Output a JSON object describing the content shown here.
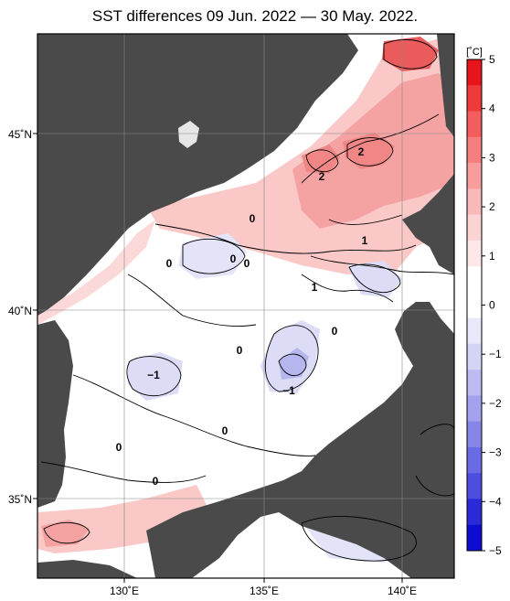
{
  "title": "SST differences 09 Jun. 2022 — 30 May. 2022.",
  "lat_labels": [
    "45˚N",
    "40˚N",
    "35˚N"
  ],
  "lon_labels": [
    "130˚E",
    "135˚E",
    "140˚E"
  ],
  "colorbar": {
    "unit": "[˚C]",
    "ticks": [
      "5",
      "4",
      "3",
      "2",
      "1",
      "0",
      "−1",
      "−2",
      "−3",
      "−4",
      "−5"
    ],
    "colors": [
      "#e8141c",
      "#ef3a3b",
      "#f35d5d",
      "#f57f7f",
      "#f79d9c",
      "#f9b9b8",
      "#fbd3d2",
      "#fde8e7",
      "#ffffff",
      "#ffffff",
      "#e9e9fb",
      "#d4d4f7",
      "#bcbcf2",
      "#a2a2ee",
      "#8686e9",
      "#6a6ae4",
      "#4d4ddf",
      "#2a2ad9",
      "#0d0dd2"
    ]
  },
  "contour_labels": [
    {
      "text": "2"
    },
    {
      "text": "2"
    },
    {
      "text": "1"
    },
    {
      "text": "1"
    },
    {
      "text": "0"
    },
    {
      "text": "0"
    },
    {
      "text": "0"
    },
    {
      "text": "0"
    },
    {
      "text": "0"
    },
    {
      "text": "0"
    },
    {
      "text": "0"
    },
    {
      "text": "0"
    },
    {
      "text": "0"
    },
    {
      "text": "−1"
    },
    {
      "text": "−1"
    }
  ],
  "colors": {
    "land": "#4a4a4a",
    "sea_base": "#ffffff",
    "grid": "#888888"
  }
}
